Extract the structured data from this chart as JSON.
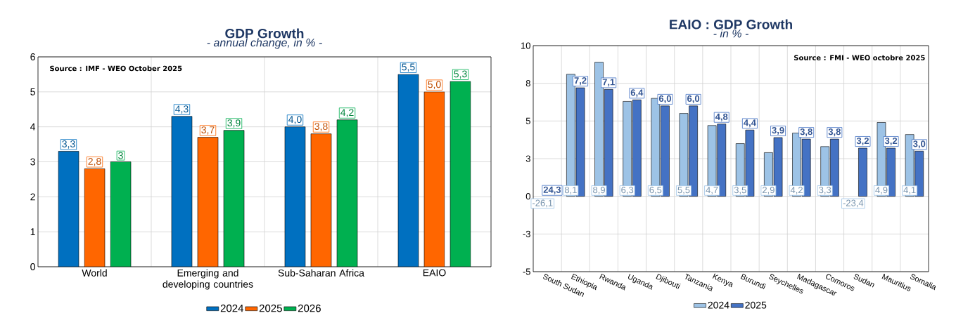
{
  "chart_data": [
    {
      "type": "bar",
      "title": "GDP Growth",
      "subtitle": "- annual change, in % -",
      "categories": [
        "World",
        "Emerging and developing countries",
        "Sub-Saharan Africa",
        "EAIO"
      ],
      "series": [
        {
          "name": "2024",
          "color": "#0070c0",
          "values": [
            3.3,
            4.3,
            4.0,
            5.5
          ],
          "value_labels": [
            "3,3",
            "4,3",
            "4,0",
            "5,5"
          ]
        },
        {
          "name": "2025",
          "color": "#ff6600",
          "values": [
            2.8,
            3.7,
            3.8,
            5.0
          ],
          "value_labels": [
            "2,8",
            "3,7",
            "3,8",
            "5,0"
          ]
        },
        {
          "name": "2026",
          "color": "#00b050",
          "values": [
            3.0,
            3.9,
            4.2,
            5.3
          ],
          "value_labels": [
            "3",
            "3,9",
            "4,2",
            "5,3"
          ]
        }
      ],
      "ylim": [
        0,
        6
      ],
      "yticks": [
        0,
        1,
        2,
        3,
        4,
        5,
        6
      ],
      "grid": true,
      "legend": "bottom",
      "annotations": [
        "Source : IMF - WEO October 2025"
      ]
    },
    {
      "type": "bar",
      "title": "EAIO : GDP Growth",
      "subtitle": "- in % -",
      "categories": [
        "South Sudan",
        "Ethiopia",
        "Rwanda",
        "Uganda",
        "Djibouti",
        "Tanzania",
        "Kenya",
        "Burundi",
        "Seychelles",
        "Madagascar",
        "Comoros",
        "Sudan",
        "Mauritius",
        "Somalia"
      ],
      "series": [
        {
          "name": "2024",
          "color": "#9dc3e6",
          "values": [
            null,
            8.1,
            8.9,
            6.3,
            6.5,
            5.5,
            4.7,
            3.5,
            2.9,
            4.2,
            3.3,
            null,
            4.9,
            4.1
          ],
          "value_labels": [
            "-26,1",
            "8,1",
            "8,9",
            "6,3",
            "6,5",
            "5,5",
            "4,7",
            "3,5",
            "2,9",
            "4,2",
            "3,3",
            "-23,4",
            "4,9",
            "4,1"
          ]
        },
        {
          "name": "2025",
          "color": "#4472c4",
          "values": [
            null,
            7.2,
            7.1,
            6.4,
            6.0,
            6.0,
            4.8,
            4.4,
            3.9,
            3.8,
            3.8,
            3.2,
            3.2,
            3.0
          ],
          "value_labels": [
            "24,3",
            "7,2",
            "7,1",
            "6,4",
            "6,0",
            "6,0",
            "4,8",
            "4,4",
            "3,9",
            "3,8",
            "3,8",
            "3,2",
            "3,2",
            "3,0"
          ]
        }
      ],
      "ylim": [
        -5,
        10
      ],
      "yticks": [
        -5,
        {
          "value": -2.5,
          "label": "-3"
        },
        0,
        {
          "value": 2.5,
          "label": "3"
        },
        5,
        {
          "value": 7.5,
          "label": "8"
        },
        10
      ],
      "grid": true,
      "legend": "bottom",
      "annotations": [
        "Source : FMI - WEO octobre 2025"
      ]
    }
  ]
}
